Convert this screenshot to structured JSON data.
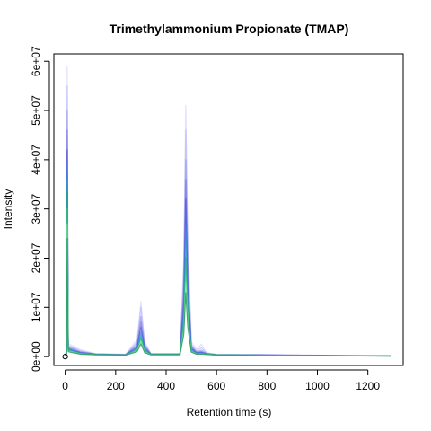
{
  "chart_data": {
    "type": "line",
    "title": "Trimethylammonium Propionate (TMAP)",
    "xlabel": "Retention time (s)",
    "ylabel": "Intensity",
    "xlim": [
      -45,
      1340
    ],
    "ylim": [
      -1800000,
      61500000
    ],
    "x_ticks": [
      0,
      200,
      400,
      600,
      800,
      1000,
      1200
    ],
    "x_tick_labels": [
      "0",
      "200",
      "400",
      "600",
      "800",
      "1000",
      "1200"
    ],
    "y_ticks": [
      0,
      10000000,
      20000000,
      30000000,
      40000000,
      50000000,
      60000000
    ],
    "y_tick_labels": [
      "0e+00",
      "1e+07",
      "2e+07",
      "3e+07",
      "4e+07",
      "5e+07",
      "6e+07"
    ],
    "grid": false,
    "legend": "none",
    "initial_point": {
      "x": 0,
      "y": 0
    },
    "series": [
      {
        "color": "#d6d6ff",
        "values": [
          [
            0,
            600000
          ],
          [
            5,
            900000
          ],
          [
            8,
            59000000
          ],
          [
            12,
            2600000
          ],
          [
            30,
            2200000
          ],
          [
            60,
            1400000
          ],
          [
            120,
            600000
          ],
          [
            240,
            500000
          ],
          [
            285,
            3500000
          ],
          [
            300,
            11200000
          ],
          [
            315,
            3000000
          ],
          [
            340,
            600000
          ],
          [
            455,
            600000
          ],
          [
            470,
            20000000
          ],
          [
            478,
            51000000
          ],
          [
            486,
            26000000
          ],
          [
            500,
            3000000
          ],
          [
            520,
            1500000
          ],
          [
            540,
            2500000
          ],
          [
            560,
            800000
          ],
          [
            600,
            500000
          ],
          [
            1000,
            300000
          ],
          [
            1290,
            200000
          ]
        ]
      },
      {
        "color": "#b8b8f5",
        "values": [
          [
            0,
            500000
          ],
          [
            5,
            800000
          ],
          [
            8,
            55000000
          ],
          [
            12,
            2300000
          ],
          [
            30,
            1900000
          ],
          [
            60,
            1200000
          ],
          [
            120,
            550000
          ],
          [
            240,
            450000
          ],
          [
            285,
            3000000
          ],
          [
            300,
            10000000
          ],
          [
            315,
            2600000
          ],
          [
            340,
            550000
          ],
          [
            455,
            550000
          ],
          [
            470,
            18000000
          ],
          [
            478,
            46000000
          ],
          [
            486,
            22000000
          ],
          [
            500,
            2500000
          ],
          [
            520,
            1200000
          ],
          [
            540,
            1800000
          ],
          [
            560,
            700000
          ],
          [
            600,
            450000
          ],
          [
            1000,
            280000
          ],
          [
            1290,
            180000
          ]
        ]
      },
      {
        "color": "#9a9aee",
        "values": [
          [
            0,
            450000
          ],
          [
            5,
            700000
          ],
          [
            8,
            50000000
          ],
          [
            12,
            2000000
          ],
          [
            30,
            1700000
          ],
          [
            60,
            1000000
          ],
          [
            120,
            520000
          ],
          [
            240,
            420000
          ],
          [
            285,
            2600000
          ],
          [
            300,
            8200000
          ],
          [
            315,
            2300000
          ],
          [
            340,
            520000
          ],
          [
            455,
            520000
          ],
          [
            470,
            16000000
          ],
          [
            478,
            40000000
          ],
          [
            486,
            19000000
          ],
          [
            500,
            2200000
          ],
          [
            520,
            1000000
          ],
          [
            540,
            1300000
          ],
          [
            560,
            650000
          ],
          [
            600,
            420000
          ],
          [
            1000,
            260000
          ],
          [
            1290,
            170000
          ]
        ]
      },
      {
        "color": "#7777e0",
        "values": [
          [
            0,
            400000
          ],
          [
            5,
            650000
          ],
          [
            8,
            46000000
          ],
          [
            12,
            1800000
          ],
          [
            30,
            1500000
          ],
          [
            60,
            900000
          ],
          [
            120,
            500000
          ],
          [
            240,
            400000
          ],
          [
            285,
            2200000
          ],
          [
            300,
            7000000
          ],
          [
            315,
            2000000
          ],
          [
            340,
            500000
          ],
          [
            455,
            500000
          ],
          [
            470,
            13000000
          ],
          [
            478,
            36000000
          ],
          [
            486,
            16000000
          ],
          [
            500,
            1900000
          ],
          [
            520,
            900000
          ],
          [
            540,
            1000000
          ],
          [
            560,
            600000
          ],
          [
            600,
            400000
          ],
          [
            1000,
            250000
          ],
          [
            1290,
            160000
          ]
        ]
      },
      {
        "color": "#4d4dd6",
        "values": [
          [
            0,
            380000
          ],
          [
            5,
            600000
          ],
          [
            8,
            42000000
          ],
          [
            12,
            1600000
          ],
          [
            30,
            1300000
          ],
          [
            60,
            800000
          ],
          [
            120,
            480000
          ],
          [
            240,
            380000
          ],
          [
            285,
            1900000
          ],
          [
            300,
            6000000
          ],
          [
            315,
            1700000
          ],
          [
            340,
            480000
          ],
          [
            455,
            480000
          ],
          [
            470,
            11000000
          ],
          [
            478,
            32000000
          ],
          [
            486,
            14000000
          ],
          [
            500,
            1700000
          ],
          [
            520,
            800000
          ],
          [
            540,
            900000
          ],
          [
            560,
            550000
          ],
          [
            600,
            380000
          ],
          [
            1000,
            240000
          ],
          [
            1290,
            150000
          ]
        ]
      },
      {
        "color": "#3a7ae0",
        "values": [
          [
            0,
            360000
          ],
          [
            5,
            560000
          ],
          [
            8,
            39000000
          ],
          [
            12,
            1500000
          ],
          [
            30,
            1200000
          ],
          [
            60,
            750000
          ],
          [
            120,
            460000
          ],
          [
            240,
            370000
          ],
          [
            285,
            1700000
          ],
          [
            300,
            5000000
          ],
          [
            315,
            1500000
          ],
          [
            340,
            460000
          ],
          [
            455,
            460000
          ],
          [
            470,
            9000000
          ],
          [
            478,
            28000000
          ],
          [
            486,
            12000000
          ],
          [
            500,
            1500000
          ],
          [
            520,
            700000
          ],
          [
            540,
            800000
          ],
          [
            560,
            520000
          ],
          [
            600,
            370000
          ],
          [
            1000,
            230000
          ],
          [
            1290,
            140000
          ]
        ]
      },
      {
        "color": "#2aa0b8",
        "values": [
          [
            0,
            340000
          ],
          [
            5,
            520000
          ],
          [
            8,
            36000000
          ],
          [
            12,
            1400000
          ],
          [
            30,
            1100000
          ],
          [
            60,
            700000
          ],
          [
            120,
            440000
          ],
          [
            240,
            360000
          ],
          [
            285,
            1500000
          ],
          [
            300,
            4300000
          ],
          [
            315,
            1300000
          ],
          [
            340,
            440000
          ],
          [
            455,
            440000
          ],
          [
            470,
            8000000
          ],
          [
            478,
            24000000
          ],
          [
            486,
            10000000
          ],
          [
            500,
            1300000
          ],
          [
            520,
            650000
          ],
          [
            540,
            700000
          ],
          [
            560,
            500000
          ],
          [
            600,
            360000
          ],
          [
            1000,
            220000
          ],
          [
            1290,
            130000
          ]
        ]
      },
      {
        "color": "#1fa87a",
        "values": [
          [
            0,
            320000
          ],
          [
            5,
            500000
          ],
          [
            8,
            34000000
          ],
          [
            12,
            1300000
          ],
          [
            30,
            1000000
          ],
          [
            60,
            650000
          ],
          [
            120,
            420000
          ],
          [
            240,
            350000
          ],
          [
            285,
            1300000
          ],
          [
            300,
            3800000
          ],
          [
            315,
            1100000
          ],
          [
            340,
            420000
          ],
          [
            455,
            420000
          ],
          [
            470,
            7000000
          ],
          [
            478,
            20000000
          ],
          [
            486,
            9000000
          ],
          [
            500,
            1200000
          ],
          [
            520,
            600000
          ],
          [
            540,
            650000
          ],
          [
            560,
            480000
          ],
          [
            600,
            350000
          ],
          [
            1000,
            210000
          ],
          [
            1290,
            120000
          ]
        ]
      },
      {
        "color": "#3fcf6f",
        "values": [
          [
            0,
            300000
          ],
          [
            5,
            480000
          ],
          [
            8,
            30000000
          ],
          [
            12,
            1200000
          ],
          [
            30,
            950000
          ],
          [
            60,
            600000
          ],
          [
            120,
            400000
          ],
          [
            240,
            340000
          ],
          [
            285,
            1200000
          ],
          [
            300,
            3400000
          ],
          [
            315,
            1000000
          ],
          [
            340,
            400000
          ],
          [
            455,
            400000
          ],
          [
            470,
            6000000
          ],
          [
            478,
            17000000
          ],
          [
            486,
            8000000
          ],
          [
            500,
            1100000
          ],
          [
            520,
            560000
          ],
          [
            540,
            600000
          ],
          [
            560,
            460000
          ],
          [
            600,
            340000
          ],
          [
            1000,
            200000
          ],
          [
            1290,
            110000
          ]
        ]
      },
      {
        "color": "#8fe6a8",
        "values": [
          [
            0,
            280000
          ],
          [
            5,
            460000
          ],
          [
            8,
            27000000
          ],
          [
            12,
            1100000
          ],
          [
            30,
            900000
          ],
          [
            60,
            560000
          ],
          [
            120,
            380000
          ],
          [
            240,
            330000
          ],
          [
            285,
            1100000
          ],
          [
            300,
            3000000
          ],
          [
            315,
            900000
          ],
          [
            340,
            380000
          ],
          [
            455,
            380000
          ],
          [
            470,
            5000000
          ],
          [
            478,
            15000000
          ],
          [
            486,
            7000000
          ],
          [
            500,
            1000000
          ],
          [
            520,
            530000
          ],
          [
            540,
            560000
          ],
          [
            560,
            440000
          ],
          [
            600,
            330000
          ],
          [
            1000,
            190000
          ],
          [
            1290,
            100000
          ]
        ]
      },
      {
        "color": "#1a8f5a",
        "values": [
          [
            0,
            260000
          ],
          [
            5,
            420000
          ],
          [
            8,
            24000000
          ],
          [
            12,
            1000000
          ],
          [
            30,
            800000
          ],
          [
            60,
            500000
          ],
          [
            120,
            360000
          ],
          [
            240,
            320000
          ],
          [
            285,
            1000000
          ],
          [
            300,
            2600000
          ],
          [
            315,
            800000
          ],
          [
            340,
            360000
          ],
          [
            455,
            360000
          ],
          [
            470,
            4500000
          ],
          [
            478,
            13000000
          ],
          [
            486,
            6000000
          ],
          [
            500,
            900000
          ],
          [
            520,
            500000
          ],
          [
            540,
            520000
          ],
          [
            560,
            420000
          ],
          [
            600,
            320000
          ],
          [
            1000,
            180000
          ],
          [
            1290,
            90000
          ]
        ]
      }
    ]
  }
}
